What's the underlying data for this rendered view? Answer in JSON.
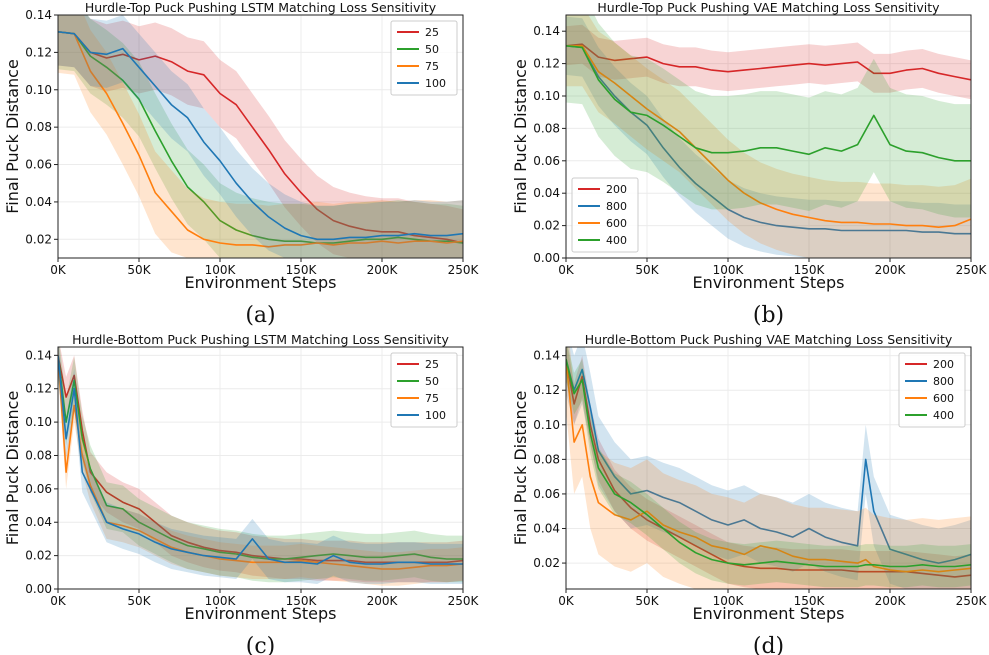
{
  "chart_data": [
    {
      "type": "line",
      "title": "Hurdle-Top Puck Pushing LSTM Matching Loss Sensitivity",
      "xlabel": "Environment Steps",
      "ylabel": "Final Puck Distance",
      "caption": "(a)",
      "xlim": [
        0,
        250000
      ],
      "ylim": [
        0.01,
        0.14
      ],
      "xticks": [
        0,
        50000,
        100000,
        150000,
        200000,
        250000
      ],
      "xtick_labels": [
        "0K",
        "50K",
        "100K",
        "150K",
        "200K",
        "250K"
      ],
      "yticks": [
        0.02,
        0.04,
        0.06,
        0.08,
        0.1,
        0.12,
        0.14
      ],
      "ytick_labels": [
        "0.02",
        "0.04",
        "0.06",
        "0.08",
        "0.10",
        "0.12",
        "0.14"
      ],
      "grid": true,
      "legend_position": "top-right",
      "x": [
        0,
        10000,
        20000,
        30000,
        40000,
        50000,
        60000,
        70000,
        80000,
        90000,
        100000,
        110000,
        120000,
        130000,
        140000,
        150000,
        160000,
        170000,
        180000,
        190000,
        200000,
        210000,
        220000,
        230000,
        240000,
        250000
      ],
      "series": [
        {
          "name": "25",
          "color": "#d62728",
          "band": 0.018,
          "values": [
            0.131,
            0.13,
            0.12,
            0.117,
            0.119,
            0.116,
            0.118,
            0.115,
            0.11,
            0.108,
            0.098,
            0.092,
            0.08,
            0.068,
            0.055,
            0.045,
            0.036,
            0.03,
            0.027,
            0.025,
            0.024,
            0.024,
            0.022,
            0.021,
            0.02,
            0.018
          ]
        },
        {
          "name": "50",
          "color": "#2ca02c",
          "band": 0.02,
          "values": [
            0.131,
            0.13,
            0.118,
            0.112,
            0.105,
            0.095,
            0.078,
            0.062,
            0.048,
            0.04,
            0.03,
            0.025,
            0.022,
            0.02,
            0.019,
            0.019,
            0.018,
            0.018,
            0.019,
            0.02,
            0.02,
            0.021,
            0.02,
            0.019,
            0.019,
            0.018
          ]
        },
        {
          "name": "75",
          "color": "#ff7f0e",
          "band": 0.022,
          "values": [
            0.131,
            0.13,
            0.11,
            0.098,
            0.082,
            0.065,
            0.045,
            0.035,
            0.025,
            0.02,
            0.018,
            0.017,
            0.017,
            0.016,
            0.017,
            0.017,
            0.018,
            0.017,
            0.018,
            0.018,
            0.019,
            0.018,
            0.019,
            0.019,
            0.018,
            0.019
          ]
        },
        {
          "name": "100",
          "color": "#1f77b4",
          "band": 0.018,
          "values": [
            0.131,
            0.13,
            0.12,
            0.119,
            0.122,
            0.112,
            0.102,
            0.092,
            0.085,
            0.072,
            0.062,
            0.05,
            0.04,
            0.032,
            0.026,
            0.022,
            0.02,
            0.02,
            0.021,
            0.021,
            0.022,
            0.022,
            0.023,
            0.022,
            0.022,
            0.023
          ]
        }
      ]
    },
    {
      "type": "line",
      "title": "Hurdle-Top Puck Pushing VAE Matching Loss Sensitivity",
      "xlabel": "Environment Steps",
      "ylabel": "Final Puck Distance",
      "caption": "(b)",
      "xlim": [
        0,
        250000
      ],
      "ylim": [
        0.0,
        0.15
      ],
      "xticks": [
        0,
        50000,
        100000,
        150000,
        200000,
        250000
      ],
      "xtick_labels": [
        "0K",
        "50K",
        "100K",
        "150K",
        "200K",
        "250K"
      ],
      "yticks": [
        0.0,
        0.02,
        0.04,
        0.06,
        0.08,
        0.1,
        0.12,
        0.14
      ],
      "ytick_labels": [
        "0.00",
        "0.02",
        "0.04",
        "0.06",
        "0.08",
        "0.10",
        "0.12",
        "0.14"
      ],
      "grid": true,
      "legend_position": "bottom-left",
      "x": [
        0,
        10000,
        20000,
        30000,
        40000,
        50000,
        60000,
        70000,
        80000,
        90000,
        100000,
        110000,
        120000,
        130000,
        140000,
        150000,
        160000,
        170000,
        180000,
        190000,
        200000,
        210000,
        220000,
        230000,
        240000,
        250000
      ],
      "series": [
        {
          "name": "200",
          "color": "#d62728",
          "band": 0.012,
          "values": [
            0.131,
            0.132,
            0.124,
            0.122,
            0.123,
            0.124,
            0.12,
            0.118,
            0.118,
            0.116,
            0.115,
            0.116,
            0.117,
            0.118,
            0.119,
            0.12,
            0.119,
            0.12,
            0.121,
            0.114,
            0.114,
            0.116,
            0.117,
            0.114,
            0.112,
            0.11
          ]
        },
        {
          "name": "800",
          "color": "#1f77b4",
          "band": 0.018,
          "values": [
            0.131,
            0.13,
            0.112,
            0.1,
            0.09,
            0.082,
            0.068,
            0.056,
            0.046,
            0.038,
            0.03,
            0.025,
            0.022,
            0.02,
            0.019,
            0.018,
            0.018,
            0.017,
            0.017,
            0.017,
            0.017,
            0.017,
            0.016,
            0.016,
            0.015,
            0.015
          ]
        },
        {
          "name": "600",
          "color": "#ff7f0e",
          "band": 0.025,
          "values": [
            0.131,
            0.131,
            0.115,
            0.108,
            0.1,
            0.092,
            0.085,
            0.078,
            0.068,
            0.058,
            0.048,
            0.04,
            0.034,
            0.03,
            0.027,
            0.025,
            0.023,
            0.022,
            0.022,
            0.021,
            0.021,
            0.02,
            0.02,
            0.019,
            0.02,
            0.024
          ]
        },
        {
          "name": "400",
          "color": "#2ca02c",
          "band": 0.035,
          "values": [
            0.131,
            0.13,
            0.11,
            0.098,
            0.09,
            0.088,
            0.082,
            0.075,
            0.068,
            0.065,
            0.065,
            0.066,
            0.068,
            0.068,
            0.066,
            0.064,
            0.068,
            0.066,
            0.07,
            0.088,
            0.07,
            0.066,
            0.065,
            0.062,
            0.06,
            0.06
          ]
        }
      ]
    },
    {
      "type": "line",
      "title": "Hurdle-Bottom Puck Pushing LSTM Matching Loss Sensitivity",
      "xlabel": "Environment Steps",
      "ylabel": "Final Puck Distance",
      "caption": "(c)",
      "xlim": [
        0,
        250000
      ],
      "ylim": [
        0.0,
        0.145
      ],
      "xticks": [
        0,
        50000,
        100000,
        150000,
        200000,
        250000
      ],
      "xtick_labels": [
        "0K",
        "50K",
        "100K",
        "150K",
        "200K",
        "250K"
      ],
      "yticks": [
        0.0,
        0.02,
        0.04,
        0.06,
        0.08,
        0.1,
        0.12,
        0.14
      ],
      "ytick_labels": [
        "0.00",
        "0.02",
        "0.04",
        "0.06",
        "0.08",
        "0.10",
        "0.12",
        "0.14"
      ],
      "grid": true,
      "legend_position": "top-right",
      "x": [
        0,
        5000,
        10000,
        15000,
        20000,
        30000,
        40000,
        50000,
        60000,
        70000,
        80000,
        90000,
        100000,
        110000,
        120000,
        130000,
        140000,
        150000,
        160000,
        170000,
        180000,
        190000,
        200000,
        210000,
        220000,
        230000,
        240000,
        250000
      ],
      "series": [
        {
          "name": "25",
          "color": "#d62728",
          "band": 0.012,
          "values": [
            0.14,
            0.115,
            0.128,
            0.095,
            0.07,
            0.058,
            0.052,
            0.048,
            0.04,
            0.032,
            0.028,
            0.025,
            0.023,
            0.022,
            0.02,
            0.019,
            0.018,
            0.018,
            0.017,
            0.017,
            0.017,
            0.016,
            0.016,
            0.016,
            0.016,
            0.016,
            0.016,
            0.017
          ]
        },
        {
          "name": "50",
          "color": "#2ca02c",
          "band": 0.014,
          "values": [
            0.14,
            0.1,
            0.125,
            0.09,
            0.072,
            0.05,
            0.048,
            0.04,
            0.035,
            0.03,
            0.026,
            0.024,
            0.022,
            0.021,
            0.019,
            0.018,
            0.018,
            0.019,
            0.02,
            0.021,
            0.02,
            0.019,
            0.019,
            0.02,
            0.021,
            0.019,
            0.018,
            0.018
          ]
        },
        {
          "name": "75",
          "color": "#ff7f0e",
          "band": 0.01,
          "values": [
            0.14,
            0.07,
            0.11,
            0.08,
            0.062,
            0.04,
            0.038,
            0.035,
            0.03,
            0.025,
            0.022,
            0.02,
            0.018,
            0.017,
            0.016,
            0.016,
            0.016,
            0.017,
            0.016,
            0.015,
            0.014,
            0.013,
            0.012,
            0.012,
            0.013,
            0.014,
            0.014,
            0.015
          ]
        },
        {
          "name": "100",
          "color": "#1f77b4",
          "band": 0.012,
          "values": [
            0.14,
            0.09,
            0.12,
            0.07,
            0.06,
            0.04,
            0.036,
            0.033,
            0.028,
            0.024,
            0.022,
            0.02,
            0.019,
            0.018,
            0.03,
            0.018,
            0.016,
            0.016,
            0.015,
            0.02,
            0.016,
            0.015,
            0.015,
            0.016,
            0.016,
            0.015,
            0.015,
            0.015
          ]
        }
      ]
    },
    {
      "type": "line",
      "title": "Hurdle-Bottom Puck Pushing VAE Matching Loss Sensitivity",
      "xlabel": "Environment Steps",
      "ylabel": "Final Puck Distance",
      "caption": "(d)",
      "xlim": [
        0,
        250000
      ],
      "ylim": [
        0.005,
        0.145
      ],
      "xticks": [
        0,
        50000,
        100000,
        150000,
        200000,
        250000
      ],
      "xtick_labels": [
        "0K",
        "50K",
        "100K",
        "150K",
        "200K",
        "250K"
      ],
      "yticks": [
        0.02,
        0.04,
        0.06,
        0.08,
        0.1,
        0.12,
        0.14
      ],
      "ytick_labels": [
        "0.02",
        "0.04",
        "0.06",
        "0.08",
        "0.10",
        "0.12",
        "0.14"
      ],
      "grid": true,
      "legend_position": "top-right",
      "x": [
        0,
        5000,
        10000,
        15000,
        20000,
        30000,
        40000,
        50000,
        60000,
        70000,
        80000,
        90000,
        100000,
        110000,
        120000,
        130000,
        140000,
        150000,
        160000,
        170000,
        180000,
        185000,
        190000,
        200000,
        210000,
        220000,
        230000,
        240000,
        250000
      ],
      "series": [
        {
          "name": "200",
          "color": "#d62728",
          "band": 0.012,
          "values": [
            0.138,
            0.112,
            0.128,
            0.1,
            0.08,
            0.062,
            0.052,
            0.045,
            0.04,
            0.035,
            0.03,
            0.025,
            0.02,
            0.018,
            0.017,
            0.017,
            0.016,
            0.016,
            0.016,
            0.016,
            0.015,
            0.015,
            0.015,
            0.015,
            0.015,
            0.014,
            0.013,
            0.012,
            0.013
          ]
        },
        {
          "name": "800",
          "color": "#1f77b4",
          "band": 0.02,
          "values": [
            0.138,
            0.12,
            0.132,
            0.11,
            0.085,
            0.07,
            0.06,
            0.062,
            0.058,
            0.055,
            0.05,
            0.045,
            0.042,
            0.045,
            0.04,
            0.038,
            0.035,
            0.04,
            0.035,
            0.032,
            0.03,
            0.08,
            0.05,
            0.028,
            0.025,
            0.022,
            0.02,
            0.022,
            0.025
          ]
        },
        {
          "name": "600",
          "color": "#ff7f0e",
          "band": 0.03,
          "values": [
            0.138,
            0.09,
            0.1,
            0.07,
            0.055,
            0.048,
            0.045,
            0.05,
            0.042,
            0.038,
            0.035,
            0.03,
            0.028,
            0.025,
            0.03,
            0.028,
            0.024,
            0.022,
            0.022,
            0.021,
            0.02,
            0.022,
            0.018,
            0.016,
            0.015,
            0.016,
            0.015,
            0.016,
            0.017
          ]
        },
        {
          "name": "400",
          "color": "#2ca02c",
          "band": 0.012,
          "values": [
            0.138,
            0.118,
            0.126,
            0.095,
            0.075,
            0.06,
            0.055,
            0.048,
            0.04,
            0.032,
            0.026,
            0.022,
            0.02,
            0.019,
            0.02,
            0.021,
            0.02,
            0.019,
            0.018,
            0.018,
            0.018,
            0.019,
            0.019,
            0.018,
            0.018,
            0.019,
            0.018,
            0.018,
            0.019
          ]
        }
      ]
    }
  ]
}
